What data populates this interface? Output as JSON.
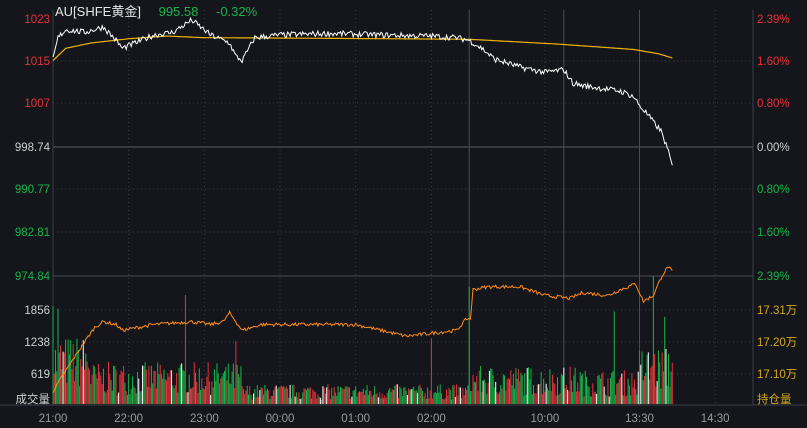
{
  "header": {
    "symbol": "AU[SHFE黄金]",
    "price": "995.58",
    "change": "-0.32%"
  },
  "colors": {
    "up": "#e8313a",
    "down": "#19b34a",
    "price_line": "#ffffff",
    "avg_line": "#f0b400",
    "oi_line": "#ff8c1a",
    "oi_axis": "#d6a81c",
    "bg": "#14161b"
  },
  "chart_data": [
    {
      "type": "line",
      "title": "AU[SHFE黄金] intraday",
      "yleft_ticks": [
        "1023",
        "1015",
        "1007",
        "998.74",
        "990.77",
        "982.81",
        "974.84"
      ],
      "yright_ticks": [
        "2.39%",
        "1.60%",
        "0.80%",
        "0.00%",
        "0.80%",
        "1.60%",
        "2.39%"
      ],
      "ylim": [
        974.84,
        1023
      ],
      "prev_settle": 998.74,
      "x_ticks": [
        "21:00",
        "22:00",
        "23:00",
        "00:00",
        "01:00",
        "02:00",
        "10:00",
        "13:30",
        "14:30"
      ],
      "x_unit": "trading minute index (0 = 21:00, 555 = 15:00)",
      "series": [
        {
          "name": "price",
          "points": [
            [
              0,
              1015.5
            ],
            [
              4,
              1019.5
            ],
            [
              10,
              1021
            ],
            [
              25,
              1020.5
            ],
            [
              40,
              1021.5
            ],
            [
              50,
              1019
            ],
            [
              55,
              1017.5
            ],
            [
              65,
              1018.5
            ],
            [
              80,
              1020
            ],
            [
              95,
              1020.5
            ],
            [
              110,
              1022.8
            ],
            [
              125,
              1020
            ],
            [
              140,
              1018.5
            ],
            [
              145,
              1016
            ],
            [
              150,
              1015.2
            ],
            [
              160,
              1019.5
            ],
            [
              180,
              1020
            ],
            [
              220,
              1020.3
            ],
            [
              260,
              1020
            ],
            [
              300,
              1019.8
            ],
            [
              320,
              1019.5
            ],
            [
              330,
              1019
            ],
            [
              340,
              1017.5
            ],
            [
              350,
              1015.5
            ],
            [
              370,
              1014
            ],
            [
              390,
              1013
            ],
            [
              405,
              1013.5
            ],
            [
              412,
              1011
            ],
            [
              420,
              1010.5
            ],
            [
              435,
              1010
            ],
            [
              450,
              1009.5
            ],
            [
              460,
              1008.5
            ],
            [
              466,
              1006.5
            ],
            [
              470,
              1005.5
            ],
            [
              475,
              1004
            ],
            [
              482,
              1002
            ],
            [
              486,
              999.5
            ],
            [
              491,
              995.58
            ]
          ]
        },
        {
          "name": "average",
          "points": [
            [
              0,
              1015.2
            ],
            [
              10,
              1017.5
            ],
            [
              30,
              1018.5
            ],
            [
              60,
              1019.3
            ],
            [
              90,
              1019.8
            ],
            [
              120,
              1019.5
            ],
            [
              200,
              1019.4
            ],
            [
              330,
              1019.2
            ],
            [
              400,
              1018.3
            ],
            [
              460,
              1017.3
            ],
            [
              480,
              1016.5
            ],
            [
              491,
              1015.7
            ]
          ]
        }
      ]
    },
    {
      "type": "bar",
      "title": "成交量",
      "ylabel": "成交量",
      "y_ticks": [
        "1856",
        "1238",
        "619"
      ],
      "ylim": [
        0,
        2350
      ],
      "notable_bars": [
        [
          0,
          1800
        ],
        [
          4,
          1750
        ],
        [
          105,
          2000
        ],
        [
          145,
          1150
        ],
        [
          300,
          1200
        ],
        [
          330,
          2150
        ],
        [
          445,
          1700
        ],
        [
          476,
          2350
        ],
        [
          485,
          1600
        ]
      ]
    },
    {
      "type": "line",
      "title": "持仓量",
      "ylabel": "持仓量",
      "y_ticks": [
        "17.31万",
        "17.20万",
        "17.10万"
      ],
      "series": [
        {
          "name": "open_interest_wan",
          "points": [
            [
              0,
              17.03
            ],
            [
              10,
              17.1
            ],
            [
              25,
              17.2
            ],
            [
              33,
              17.25
            ],
            [
              40,
              17.27
            ],
            [
              50,
              17.26
            ],
            [
              55,
              17.24
            ],
            [
              80,
              17.26
            ],
            [
              110,
              17.27
            ],
            [
              125,
              17.26
            ],
            [
              135,
              17.27
            ],
            [
              140,
              17.3
            ],
            [
              150,
              17.24
            ],
            [
              165,
              17.26
            ],
            [
              220,
              17.26
            ],
            [
              240,
              17.26
            ],
            [
              260,
              17.24
            ],
            [
              280,
              17.22
            ],
            [
              300,
              17.23
            ],
            [
              320,
              17.24
            ],
            [
              328,
              17.28
            ],
            [
              331,
              17.28
            ],
            [
              333,
              17.38
            ],
            [
              345,
              17.39
            ],
            [
              370,
              17.39
            ],
            [
              390,
              17.36
            ],
            [
              410,
              17.35
            ],
            [
              420,
              17.37
            ],
            [
              440,
              17.36
            ],
            [
              450,
              17.38
            ],
            [
              462,
              17.4
            ],
            [
              468,
              17.34
            ],
            [
              476,
              17.36
            ],
            [
              483,
              17.43
            ],
            [
              488,
              17.46
            ],
            [
              491,
              17.44
            ]
          ]
        }
      ]
    }
  ],
  "axis_labels": {
    "volume": "成交量",
    "open_interest": "持仓量"
  }
}
